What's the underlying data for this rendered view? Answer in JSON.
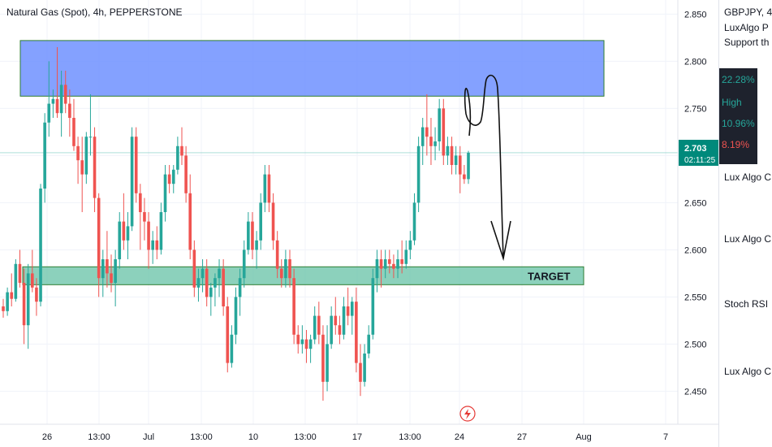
{
  "chart_data": {
    "type": "candlestick",
    "title": "Natural Gas (Spot), 4h, PEPPERSTONE",
    "y_ticks": [
      "2.850",
      "2.800",
      "2.750",
      "2.700",
      "2.650",
      "2.600",
      "2.550",
      "2.500",
      "2.450"
    ],
    "y_range": [
      2.415,
      2.865
    ],
    "x_ticks": [
      "26",
      "13:00",
      "Jul",
      "13:00",
      "10",
      "13:00",
      "17",
      "13:00",
      "24",
      "27",
      "Aug",
      "7"
    ],
    "last_price": "2.703",
    "countdown": "02:11:25",
    "target_label": "TARGET",
    "resistance_zone": [
      2.763,
      2.822
    ],
    "target_zone": [
      2.563,
      2.582
    ],
    "arrow_tip_price": 2.585,
    "candles": [
      [
        2.54,
        2.548,
        2.528,
        2.535
      ],
      [
        2.535,
        2.56,
        2.53,
        2.555
      ],
      [
        2.555,
        2.575,
        2.54,
        2.548
      ],
      [
        2.548,
        2.59,
        2.545,
        2.585
      ],
      [
        2.585,
        2.6,
        2.56,
        2.565
      ],
      [
        2.565,
        2.58,
        2.5,
        2.52
      ],
      [
        2.52,
        2.585,
        2.495,
        2.575
      ],
      [
        2.575,
        2.6,
        2.555,
        2.56
      ],
      [
        2.56,
        2.57,
        2.53,
        2.545
      ],
      [
        2.545,
        2.67,
        2.54,
        2.665
      ],
      [
        2.665,
        2.745,
        2.65,
        2.735
      ],
      [
        2.735,
        2.8,
        2.72,
        2.755
      ],
      [
        2.755,
        2.77,
        2.74,
        2.76
      ],
      [
        2.76,
        2.815,
        2.74,
        2.745
      ],
      [
        2.745,
        2.79,
        2.72,
        2.775
      ],
      [
        2.775,
        2.79,
        2.745,
        2.755
      ],
      [
        2.755,
        2.77,
        2.72,
        2.74
      ],
      [
        2.74,
        2.76,
        2.705,
        2.71
      ],
      [
        2.71,
        2.72,
        2.67,
        2.695
      ],
      [
        2.695,
        2.72,
        2.64,
        2.68
      ],
      [
        2.68,
        2.725,
        2.67,
        2.72
      ],
      [
        2.72,
        2.765,
        2.7,
        2.72
      ],
      [
        2.72,
        2.73,
        2.64,
        2.655
      ],
      [
        2.655,
        2.66,
        2.55,
        2.57
      ],
      [
        2.57,
        2.6,
        2.55,
        2.59
      ],
      [
        2.59,
        2.62,
        2.56,
        2.575
      ],
      [
        2.575,
        2.595,
        2.555,
        2.565
      ],
      [
        2.565,
        2.6,
        2.54,
        2.59
      ],
      [
        2.59,
        2.64,
        2.58,
        2.63
      ],
      [
        2.63,
        2.66,
        2.6,
        2.61
      ],
      [
        2.61,
        2.64,
        2.59,
        2.625
      ],
      [
        2.625,
        2.73,
        2.62,
        2.72
      ],
      [
        2.72,
        2.73,
        2.65,
        2.66
      ],
      [
        2.66,
        2.67,
        2.6,
        2.64
      ],
      [
        2.64,
        2.655,
        2.61,
        2.63
      ],
      [
        2.63,
        2.64,
        2.58,
        2.6
      ],
      [
        2.6,
        2.62,
        2.585,
        2.61
      ],
      [
        2.61,
        2.625,
        2.59,
        2.6
      ],
      [
        2.6,
        2.65,
        2.595,
        2.64
      ],
      [
        2.64,
        2.69,
        2.63,
        2.68
      ],
      [
        2.68,
        2.69,
        2.66,
        2.67
      ],
      [
        2.67,
        2.69,
        2.66,
        2.685
      ],
      [
        2.685,
        2.72,
        2.68,
        2.71
      ],
      [
        2.71,
        2.73,
        2.69,
        2.7
      ],
      [
        2.7,
        2.71,
        2.65,
        2.66
      ],
      [
        2.66,
        2.68,
        2.59,
        2.6
      ],
      [
        2.6,
        2.61,
        2.55,
        2.56
      ],
      [
        2.56,
        2.58,
        2.545,
        2.57
      ],
      [
        2.57,
        2.59,
        2.555,
        2.58
      ],
      [
        2.58,
        2.59,
        2.54,
        2.55
      ],
      [
        2.55,
        2.565,
        2.53,
        2.56
      ],
      [
        2.56,
        2.575,
        2.54,
        2.57
      ],
      [
        2.57,
        2.59,
        2.55,
        2.58
      ],
      [
        2.58,
        2.59,
        2.53,
        2.54
      ],
      [
        2.54,
        2.55,
        2.47,
        2.48
      ],
      [
        2.48,
        2.52,
        2.475,
        2.51
      ],
      [
        2.51,
        2.56,
        2.5,
        2.55
      ],
      [
        2.55,
        2.58,
        2.53,
        2.57
      ],
      [
        2.57,
        2.61,
        2.56,
        2.6
      ],
      [
        2.6,
        2.64,
        2.595,
        2.63
      ],
      [
        2.63,
        2.64,
        2.59,
        2.6
      ],
      [
        2.6,
        2.62,
        2.58,
        2.61
      ],
      [
        2.61,
        2.66,
        2.6,
        2.65
      ],
      [
        2.65,
        2.69,
        2.64,
        2.68
      ],
      [
        2.68,
        2.69,
        2.64,
        2.65
      ],
      [
        2.65,
        2.66,
        2.6,
        2.61
      ],
      [
        2.61,
        2.62,
        2.57,
        2.58
      ],
      [
        2.58,
        2.59,
        2.56,
        2.57
      ],
      [
        2.57,
        2.6,
        2.56,
        2.59
      ],
      [
        2.59,
        2.6,
        2.56,
        2.57
      ],
      [
        2.57,
        2.58,
        2.5,
        2.51
      ],
      [
        2.51,
        2.52,
        2.49,
        2.5
      ],
      [
        2.5,
        2.52,
        2.49,
        2.505
      ],
      [
        2.505,
        2.515,
        2.48,
        2.495
      ],
      [
        2.495,
        2.51,
        2.48,
        2.505
      ],
      [
        2.505,
        2.54,
        2.5,
        2.53
      ],
      [
        2.53,
        2.545,
        2.5,
        2.51
      ],
      [
        2.51,
        2.52,
        2.44,
        2.46
      ],
      [
        2.46,
        2.52,
        2.45,
        2.5
      ],
      [
        2.5,
        2.54,
        2.495,
        2.53
      ],
      [
        2.53,
        2.55,
        2.51,
        2.52
      ],
      [
        2.52,
        2.53,
        2.5,
        2.51
      ],
      [
        2.51,
        2.55,
        2.505,
        2.54
      ],
      [
        2.54,
        2.56,
        2.52,
        2.53
      ],
      [
        2.53,
        2.55,
        2.51,
        2.545
      ],
      [
        2.545,
        2.56,
        2.47,
        2.48
      ],
      [
        2.48,
        2.5,
        2.445,
        2.46
      ],
      [
        2.46,
        2.5,
        2.455,
        2.49
      ],
      [
        2.49,
        2.52,
        2.485,
        2.51
      ],
      [
        2.51,
        2.58,
        2.505,
        2.57
      ],
      [
        2.57,
        2.6,
        2.555,
        2.59
      ],
      [
        2.59,
        2.6,
        2.56,
        2.58
      ],
      [
        2.58,
        2.6,
        2.57,
        2.59
      ],
      [
        2.59,
        2.6,
        2.575,
        2.585
      ],
      [
        2.585,
        2.595,
        2.57,
        2.58
      ],
      [
        2.58,
        2.6,
        2.57,
        2.59
      ],
      [
        2.59,
        2.61,
        2.575,
        2.585
      ],
      [
        2.585,
        2.61,
        2.58,
        2.6
      ],
      [
        2.6,
        2.62,
        2.59,
        2.61
      ],
      [
        2.61,
        2.66,
        2.605,
        2.65
      ],
      [
        2.65,
        2.72,
        2.64,
        2.71
      ],
      [
        2.71,
        2.74,
        2.69,
        2.73
      ],
      [
        2.73,
        2.765,
        2.7,
        2.72
      ],
      [
        2.72,
        2.74,
        2.69,
        2.71
      ],
      [
        2.71,
        2.73,
        2.695,
        2.715
      ],
      [
        2.715,
        2.76,
        2.705,
        2.75
      ],
      [
        2.75,
        2.76,
        2.69,
        2.7
      ],
      [
        2.7,
        2.72,
        2.69,
        2.71
      ],
      [
        2.71,
        2.72,
        2.68,
        2.69
      ],
      [
        2.69,
        2.71,
        2.68,
        2.7
      ],
      [
        2.7,
        2.71,
        2.66,
        2.68
      ],
      [
        2.68,
        2.69,
        2.67,
        2.675
      ],
      [
        2.675,
        2.705,
        2.67,
        2.703
      ]
    ]
  },
  "panel": {
    "symbol": "GBPJPY, 4",
    "line2": "LuxAlgo P",
    "line3": "Support th",
    "pct1": "22.28%",
    "high": "High",
    "pct2": "10.96%",
    "pct3": "8.19%",
    "item1": "Lux Algo C",
    "item2": "Lux Algo C",
    "item3": "Stoch RSI",
    "item4": "Lux Algo C",
    "colors": {
      "up": "#26a69a",
      "down": "#ef5350",
      "zone_blue": "#7b9cff",
      "zone_green": "#8fd3c0",
      "price_tag": "#00897b"
    }
  }
}
